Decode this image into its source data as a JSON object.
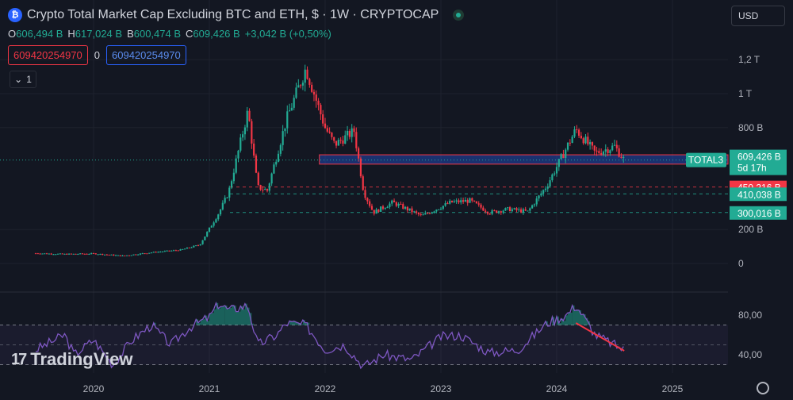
{
  "header": {
    "title": "Crypto Total Market Cap Excluding BTC and ETH, $ · 1W · CRYPTOCAP",
    "coin_icon": "coin-icon",
    "live_icon": "market-open-dot"
  },
  "ohlc": {
    "o_label": "O",
    "o": "606,494 B",
    "h_label": "H",
    "h": "617,024 B",
    "b_label": "B",
    "b": "600,474 B",
    "c_label": "C",
    "c": "609,426 B",
    "change": "+3,042 B (+0,50%)"
  },
  "order_boxes": {
    "sell": "609420254970",
    "spread": "0",
    "buy": "609420254970"
  },
  "collapse_label": "1",
  "currency": "USD",
  "brand": "TradingView",
  "colors": {
    "up": "#22ab94",
    "down": "#f23645",
    "rsi": "#7e57c2",
    "zone": "#2962ff"
  },
  "chart_data": {
    "type": "candlestick",
    "title": "Crypto Total Market Cap Excluding BTC and ETH, $ · 1W · CRYPTOCAP",
    "price_axis": {
      "ticks": [
        "1,2 T",
        "1 T",
        "800 B",
        "200 B",
        "0"
      ],
      "values": [
        1200,
        1000,
        800,
        200,
        0
      ]
    },
    "time_axis": [
      "2020",
      "2021",
      "2022",
      "2023",
      "2024",
      "2025"
    ],
    "symbol_label": "TOTAL3",
    "last_price": "609,426 B",
    "countdown": "5d 17h",
    "levels": [
      {
        "label": "450,216 B",
        "value": 450.216,
        "color": "#f23645"
      },
      {
        "label": "410,038 B",
        "value": 410.038,
        "color": "#22ab94"
      },
      {
        "label": "300,016 B",
        "value": 300.016,
        "color": "#22ab94"
      }
    ],
    "zone": {
      "from": 585,
      "to": 640
    },
    "path_points": [
      [
        "2019-07",
        60
      ],
      [
        "2019-10",
        55
      ],
      [
        "2020-01",
        58
      ],
      [
        "2020-04",
        45
      ],
      [
        "2020-07",
        65
      ],
      [
        "2020-10",
        80
      ],
      [
        "2020-12",
        110
      ],
      [
        "2021-02",
        300
      ],
      [
        "2021-03",
        420
      ],
      [
        "2021-05",
        900
      ],
      [
        "2021-06",
        450
      ],
      [
        "2021-07",
        430
      ],
      [
        "2021-09",
        850
      ],
      [
        "2021-11",
        1150
      ],
      [
        "2022-01",
        800
      ],
      [
        "2022-02",
        700
      ],
      [
        "2022-04",
        780
      ],
      [
        "2022-05",
        420
      ],
      [
        "2022-06",
        300
      ],
      [
        "2022-08",
        360
      ],
      [
        "2022-11",
        280
      ],
      [
        "2023-02",
        360
      ],
      [
        "2023-04",
        370
      ],
      [
        "2023-06",
        300
      ],
      [
        "2023-08",
        320
      ],
      [
        "2023-10",
        305
      ],
      [
        "2023-12",
        460
      ],
      [
        "2024-03",
        790
      ],
      [
        "2024-05",
        650
      ],
      [
        "2024-07",
        690
      ],
      [
        "2024-08",
        609
      ]
    ],
    "rsi": {
      "ticks": [
        "80,00",
        "40,00"
      ],
      "upper_band": 70,
      "lower_band": 30,
      "mid_line": 50,
      "points": [
        [
          "2019-07",
          45
        ],
        [
          "2019-10",
          60
        ],
        [
          "2019-11",
          40
        ],
        [
          "2020-01",
          55
        ],
        [
          "2020-03",
          30
        ],
        [
          "2020-05",
          55
        ],
        [
          "2020-07",
          70
        ],
        [
          "2020-09",
          50
        ],
        [
          "2020-11",
          68
        ],
        [
          "2021-01",
          78
        ],
        [
          "2021-02",
          92
        ],
        [
          "2021-03",
          85
        ],
        [
          "2021-05",
          90
        ],
        [
          "2021-06",
          50
        ],
        [
          "2021-08",
          60
        ],
        [
          "2021-09",
          72
        ],
        [
          "2021-11",
          70
        ],
        [
          "2022-01",
          45
        ],
        [
          "2022-03",
          50
        ],
        [
          "2022-05",
          28
        ],
        [
          "2022-07",
          40
        ],
        [
          "2022-10",
          35
        ],
        [
          "2023-01",
          58
        ],
        [
          "2023-03",
          60
        ],
        [
          "2023-06",
          42
        ],
        [
          "2023-09",
          45
        ],
        [
          "2023-12",
          72
        ],
        [
          "2024-02",
          80
        ],
        [
          "2024-03",
          90
        ],
        [
          "2024-05",
          60
        ],
        [
          "2024-07",
          50
        ],
        [
          "2024-08",
          45
        ]
      ],
      "divergence": [
        [
          "2024-03",
          72
        ],
        [
          "2024-08",
          44
        ]
      ]
    }
  }
}
